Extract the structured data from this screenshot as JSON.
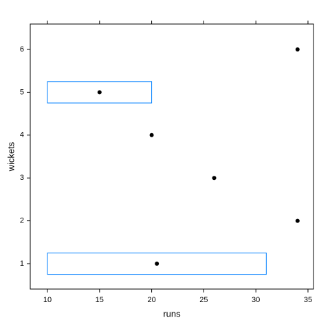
{
  "chart_data": {
    "type": "boxplot",
    "x_label": "runs",
    "y_label": "wickets",
    "categories": [
      "1",
      "2",
      "3",
      "4",
      "5",
      "6"
    ],
    "boxes": [
      {
        "q1": 10,
        "median": 20.5,
        "q3": 31
      },
      {
        "q1": 34,
        "median": 34,
        "q3": 34
      },
      {
        "q1": 26,
        "median": 26,
        "q3": 26
      },
      {
        "q1": 20,
        "median": 20,
        "q3": 20
      },
      {
        "q1": 10,
        "median": 15,
        "q3": 20
      },
      {
        "q1": 34,
        "median": 34,
        "q3": 34
      }
    ],
    "color": "#0080ff",
    "point_color": "#000000",
    "xlim": [
      8.35,
      35.53
    ],
    "xticks": [
      10,
      15,
      20,
      25,
      30,
      35
    ]
  }
}
